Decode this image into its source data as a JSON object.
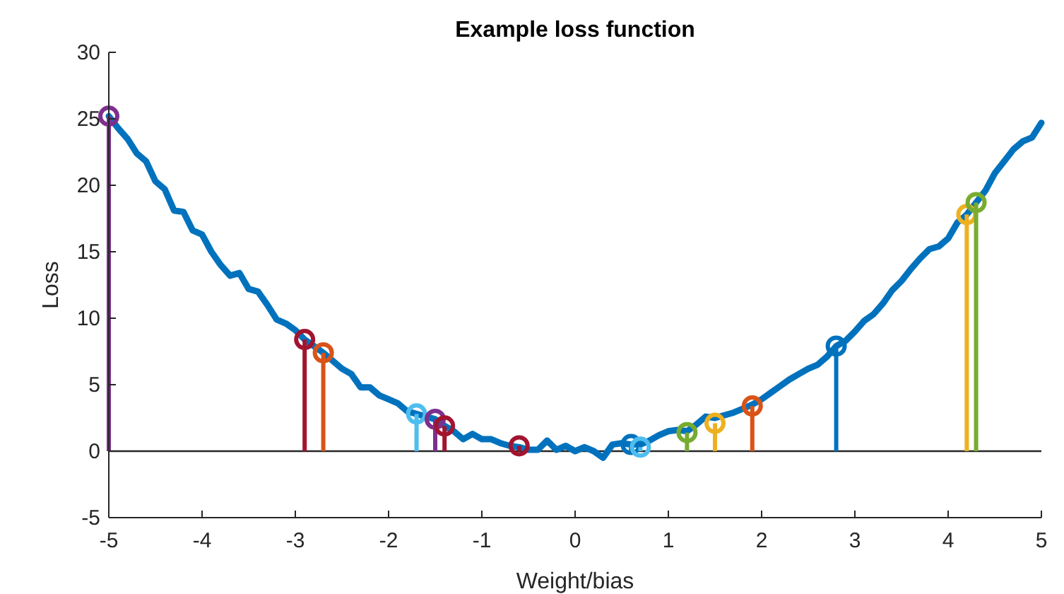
{
  "chart_data": {
    "type": "line",
    "title": "Example loss function",
    "xlabel": "Weight/bias",
    "ylabel": "Loss",
    "xlim": [
      -5,
      5
    ],
    "xticks": [
      -5,
      -4,
      -3,
      -2,
      -1,
      0,
      1,
      2,
      3,
      4,
      5
    ],
    "ylim": [
      -5,
      30
    ],
    "yticks": [
      -5,
      0,
      5,
      10,
      15,
      20,
      25,
      30
    ],
    "grid": false,
    "marker": "circle",
    "line_style": "solid",
    "ref_lines": [
      {
        "axis": "y",
        "value": 0,
        "color": "#262626"
      }
    ],
    "series": [
      {
        "color": "#0072bd",
        "marker": "none",
        "x": [
          -5,
          -4.9,
          -4.8,
          -4.7,
          -4.6,
          -4.5,
          -4.4,
          -4.3,
          -4.2,
          -4.1,
          -4,
          -3.9,
          -3.8,
          -3.7,
          -3.6,
          -3.5,
          -3.4,
          -3.3,
          -3.2,
          -3.1,
          -3,
          -2.9,
          -2.8,
          -2.7,
          -2.6,
          -2.5,
          -2.4,
          -2.3,
          -2.2,
          -2.1,
          -2,
          -1.9,
          -1.8,
          -1.7,
          -1.6,
          -1.5,
          -1.4,
          -1.3,
          -1.2,
          -1.1,
          -1,
          -0.9,
          -0.8,
          -0.7,
          -0.6,
          -0.5,
          -0.4,
          -0.3,
          -0.2,
          -0.1,
          0,
          0.1,
          0.2,
          0.3,
          0.4,
          0.5,
          0.6,
          0.7,
          0.8,
          0.9,
          1,
          1.1,
          1.2,
          1.3,
          1.4,
          1.5,
          1.6,
          1.7,
          1.8,
          1.9,
          2,
          2.1,
          2.2,
          2.3,
          2.4,
          2.5,
          2.6,
          2.7,
          2.8,
          2.9,
          3,
          3.1,
          3.2,
          3.3,
          3.4,
          3.5,
          3.6,
          3.7,
          3.8,
          3.9,
          4,
          4.1,
          4.2,
          4.3,
          4.4,
          4.5,
          4.6,
          4.7,
          4.8,
          4.9,
          5
        ],
        "values": [
          25.2,
          24.3,
          23.5,
          22.4,
          21.8,
          20.3,
          19.7,
          18.1,
          18.0,
          16.6,
          16.3,
          15.0,
          14.0,
          13.2,
          13.4,
          12.2,
          12.0,
          11.0,
          9.9,
          9.6,
          9.1,
          8.4,
          7.9,
          7.4,
          6.8,
          6.2,
          5.8,
          4.8,
          4.8,
          4.2,
          3.9,
          3.6,
          3.0,
          2.8,
          2.6,
          2.4,
          1.9,
          1.5,
          0.9,
          1.3,
          0.9,
          0.9,
          0.6,
          0.4,
          0.3,
          0.1,
          0.1,
          0.8,
          0.1,
          0.4,
          0.0,
          0.3,
          0.0,
          -0.5,
          0.5,
          0.6,
          0.5,
          0.5,
          0.8,
          1.2,
          1.5,
          1.6,
          1.5,
          2.0,
          2.6,
          2.5,
          2.7,
          2.9,
          3.2,
          3.5,
          3.9,
          4.4,
          4.9,
          5.4,
          5.8,
          6.2,
          6.5,
          7.1,
          7.9,
          8.3,
          9.0,
          9.8,
          10.3,
          11.1,
          12.1,
          12.8,
          13.7,
          14.5,
          15.2,
          15.4,
          16.0,
          17.2,
          17.8,
          18.7,
          19.6,
          20.9,
          21.8,
          22.7,
          23.3,
          23.6,
          24.7
        ]
      },
      {
        "type": "lollipop",
        "color": "#7e2f8e",
        "x": [
          -5
        ],
        "values": [
          25.2
        ]
      },
      {
        "type": "lollipop",
        "color": "#a2142f",
        "x": [
          -2.9
        ],
        "values": [
          8.4
        ]
      },
      {
        "type": "lollipop",
        "color": "#d95319",
        "x": [
          -2.7
        ],
        "values": [
          7.4
        ]
      },
      {
        "type": "lollipop",
        "color": "#4dbeee",
        "x": [
          -1.7
        ],
        "values": [
          2.8
        ]
      },
      {
        "type": "lollipop",
        "color": "#7e2f8e",
        "x": [
          -1.5
        ],
        "values": [
          2.4
        ]
      },
      {
        "type": "lollipop",
        "color": "#a2142f",
        "x": [
          -1.4
        ],
        "values": [
          1.9
        ]
      },
      {
        "type": "lollipop",
        "color": "#a2142f",
        "x": [
          -0.6
        ],
        "values": [
          0.4
        ]
      },
      {
        "type": "lollipop",
        "color": "#0072bd",
        "x": [
          0.6
        ],
        "values": [
          0.5
        ]
      },
      {
        "type": "lollipop",
        "color": "#4dbeee",
        "x": [
          0.7
        ],
        "values": [
          0.3
        ]
      },
      {
        "type": "lollipop",
        "color": "#77ac30",
        "x": [
          1.2
        ],
        "values": [
          1.4
        ]
      },
      {
        "type": "lollipop",
        "color": "#edb120",
        "x": [
          1.5
        ],
        "values": [
          2.1
        ]
      },
      {
        "type": "lollipop",
        "color": "#d95319",
        "x": [
          1.9
        ],
        "values": [
          3.4
        ]
      },
      {
        "type": "lollipop",
        "color": "#0072bd",
        "x": [
          2.8
        ],
        "values": [
          7.9
        ]
      },
      {
        "type": "lollipop",
        "color": "#edb120",
        "x": [
          4.2
        ],
        "values": [
          17.8
        ]
      },
      {
        "type": "lollipop",
        "color": "#77ac30",
        "x": [
          4.3
        ],
        "values": [
          18.7
        ]
      }
    ]
  }
}
